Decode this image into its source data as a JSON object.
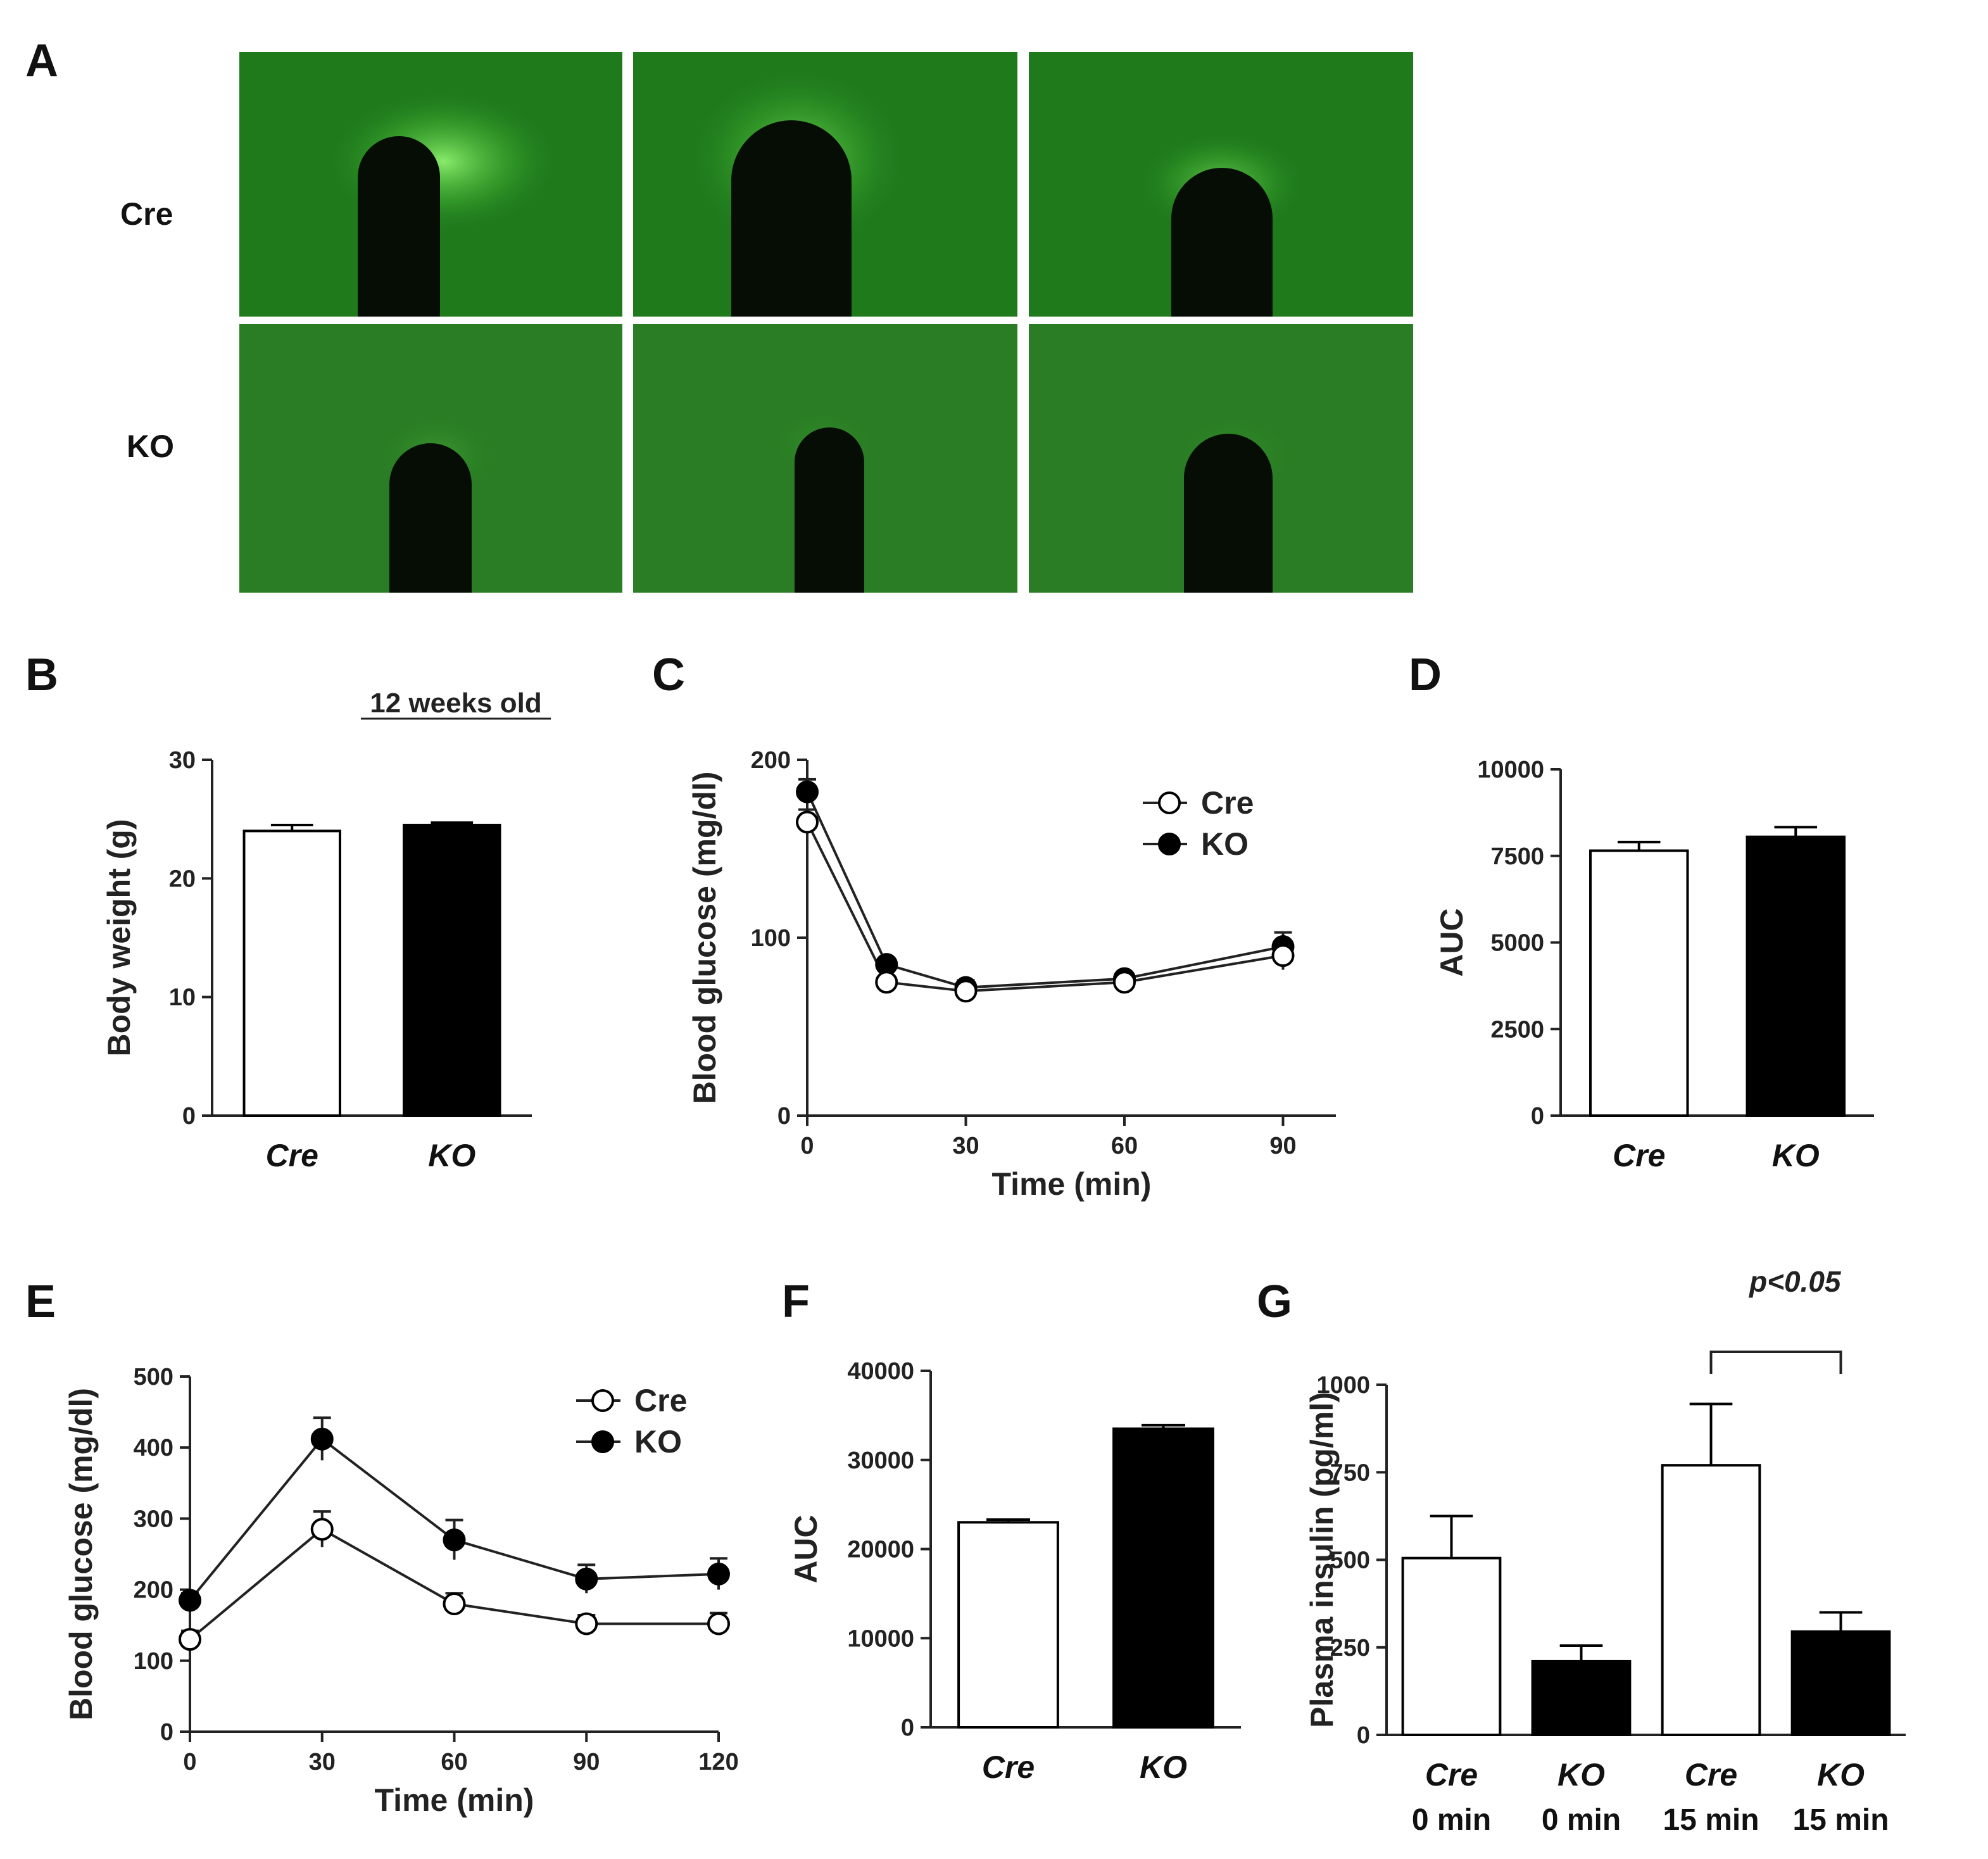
{
  "panel_a": {
    "label": "A",
    "rows": [
      "Cre",
      "KO"
    ]
  },
  "chart_data": [
    {
      "id": "B",
      "type": "bar",
      "title": "12 weeks old",
      "ylabel": "Body weight (g)",
      "xlabel": "",
      "categories": [
        "Cre",
        "KO"
      ],
      "values": [
        24,
        24.5
      ],
      "errors": [
        0.5,
        0.2
      ],
      "fills": [
        "#ffffff",
        "#000000"
      ],
      "ylim": [
        0,
        30
      ],
      "yticks": [
        0,
        10,
        20,
        30
      ]
    },
    {
      "id": "C",
      "type": "line",
      "ylabel": "Blood glucose (mg/dl)",
      "xlabel": "Time (min)",
      "x": [
        0,
        15,
        30,
        60,
        90
      ],
      "series": [
        {
          "name": "Cre",
          "values": [
            165,
            75,
            70,
            75,
            90
          ],
          "errors": [
            7,
            3,
            4,
            3,
            8
          ],
          "marker": "open"
        },
        {
          "name": "KO",
          "values": [
            182,
            85,
            72,
            77,
            95
          ],
          "errors": [
            7,
            3,
            4,
            3,
            8
          ],
          "marker": "filled"
        }
      ],
      "xlim": [
        0,
        100
      ],
      "xticks": [
        0,
        30,
        60,
        90
      ],
      "ylim": [
        0,
        200
      ],
      "yticks": [
        0,
        100,
        200
      ]
    },
    {
      "id": "D",
      "type": "bar",
      "ylabel": "AUC",
      "xlabel": "",
      "categories": [
        "Cre",
        "KO"
      ],
      "values": [
        7650,
        8050
      ],
      "errors": [
        250,
        280
      ],
      "fills": [
        "#ffffff",
        "#000000"
      ],
      "ylim": [
        0,
        10000
      ],
      "yticks": [
        0,
        2500,
        5000,
        7500,
        10000
      ]
    },
    {
      "id": "E",
      "type": "line",
      "ylabel": "Blood glucose (mg/dl)",
      "xlabel": "Time (min)",
      "x": [
        0,
        30,
        60,
        90,
        120
      ],
      "series": [
        {
          "name": "Cre",
          "values": [
            130,
            285,
            180,
            152,
            152
          ],
          "errors": [
            12,
            25,
            15,
            12,
            15
          ],
          "marker": "open"
        },
        {
          "name": "KO",
          "values": [
            185,
            412,
            270,
            215,
            222
          ],
          "errors": [
            10,
            30,
            28,
            20,
            22
          ],
          "marker": "filled"
        }
      ],
      "xlim": [
        0,
        120
      ],
      "xticks": [
        0,
        30,
        60,
        90,
        120
      ],
      "ylim": [
        0,
        500
      ],
      "yticks": [
        0,
        100,
        200,
        300,
        400,
        500
      ]
    },
    {
      "id": "F",
      "type": "bar",
      "ylabel": "AUC",
      "xlabel": "",
      "categories": [
        "Cre",
        "KO"
      ],
      "values": [
        23000,
        33500
      ],
      "errors": [
        300,
        400
      ],
      "fills": [
        "#ffffff",
        "#000000"
      ],
      "ylim": [
        0,
        40000
      ],
      "yticks": [
        0,
        10000,
        20000,
        30000,
        40000
      ]
    },
    {
      "id": "G",
      "type": "bar",
      "ylabel": "Plasma insulin (pg/ml)",
      "xlabel": "",
      "categories": [
        "Cre",
        "KO",
        "Cre",
        "KO"
      ],
      "sublabels": [
        "0 min",
        "0 min",
        "15 min",
        "15 min"
      ],
      "values": [
        505,
        210,
        770,
        295
      ],
      "errors": [
        120,
        45,
        175,
        55
      ],
      "fills": [
        "#ffffff",
        "#000000",
        "#ffffff",
        "#000000"
      ],
      "ylim": [
        0,
        1000
      ],
      "yticks": [
        0,
        250,
        500,
        750,
        1000
      ],
      "annotation": {
        "text": "p<0.05",
        "between": [
          2,
          3
        ]
      }
    }
  ]
}
